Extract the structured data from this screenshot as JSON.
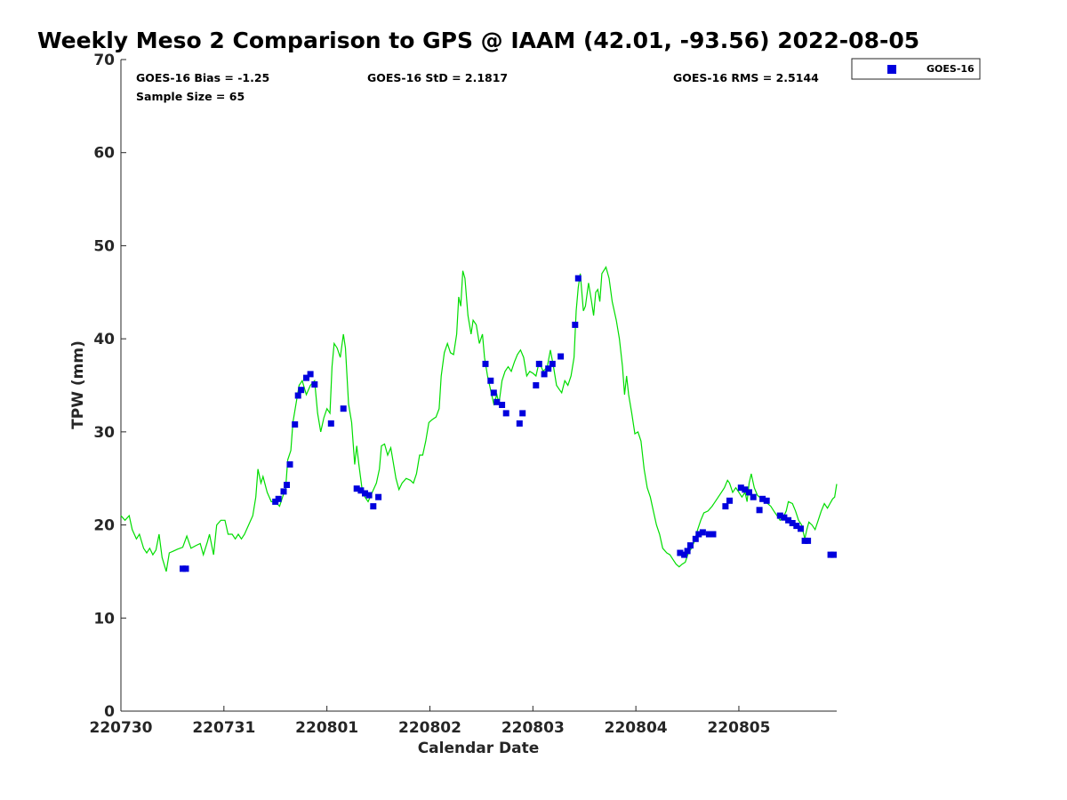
{
  "chart_data": {
    "type": "scatter",
    "title": "Weekly Meso 2 Comparison to GPS @ IAAM (42.01, -93.56) 2022-08-05",
    "xlabel": "Calendar Date",
    "ylabel": "TPW (mm)",
    "xlim": [
      0,
      6.95
    ],
    "ylim": [
      0,
      70
    ],
    "x_ticks": [
      0,
      1,
      2,
      3,
      4,
      5,
      6
    ],
    "x_tick_labels": [
      "220730",
      "220731",
      "220801",
      "220802",
      "220803",
      "220804",
      "220805"
    ],
    "y_ticks": [
      0,
      10,
      20,
      30,
      40,
      50,
      60,
      70
    ],
    "y_tick_labels": [
      "0",
      "10",
      "20",
      "30",
      "40",
      "50",
      "60",
      "70"
    ],
    "grid": false,
    "legend_position": "top-right",
    "stats": {
      "bias": "GOES-16 Bias = -1.25",
      "std": "GOES-16 StD = 2.1817",
      "rms": "GOES-16 RMS = 2.5144",
      "sample": "Sample Size = 65"
    },
    "series": [
      {
        "name": "GOES-16",
        "kind": "scatter",
        "marker": "square",
        "color": "#0000dd",
        "points": [
          [
            0.6,
            15.3
          ],
          [
            0.63,
            15.3
          ],
          [
            1.5,
            22.5
          ],
          [
            1.53,
            22.8
          ],
          [
            1.58,
            23.6
          ],
          [
            1.61,
            24.3
          ],
          [
            1.64,
            26.5
          ],
          [
            1.69,
            30.8
          ],
          [
            1.72,
            33.9
          ],
          [
            1.75,
            34.5
          ],
          [
            1.8,
            35.8
          ],
          [
            1.84,
            36.2
          ],
          [
            1.88,
            35.1
          ],
          [
            2.04,
            30.9
          ],
          [
            2.16,
            32.5
          ],
          [
            2.29,
            23.9
          ],
          [
            2.33,
            23.7
          ],
          [
            2.37,
            23.4
          ],
          [
            2.41,
            23.2
          ],
          [
            2.45,
            22.0
          ],
          [
            2.5,
            23.0
          ],
          [
            3.54,
            37.3
          ],
          [
            3.59,
            35.5
          ],
          [
            3.62,
            34.2
          ],
          [
            3.65,
            33.2
          ],
          [
            3.7,
            32.9
          ],
          [
            3.74,
            32.0
          ],
          [
            3.87,
            30.9
          ],
          [
            3.9,
            32.0
          ],
          [
            4.03,
            35.0
          ],
          [
            4.06,
            37.3
          ],
          [
            4.11,
            36.2
          ],
          [
            4.15,
            36.8
          ],
          [
            4.19,
            37.3
          ],
          [
            4.27,
            38.1
          ],
          [
            4.41,
            41.5
          ],
          [
            4.44,
            46.5
          ],
          [
            5.43,
            17.0
          ],
          [
            5.47,
            16.8
          ],
          [
            5.5,
            17.2
          ],
          [
            5.53,
            17.8
          ],
          [
            5.58,
            18.5
          ],
          [
            5.61,
            19.0
          ],
          [
            5.65,
            19.2
          ],
          [
            5.71,
            19.0
          ],
          [
            5.75,
            19.0
          ],
          [
            5.87,
            22.0
          ],
          [
            5.91,
            22.6
          ],
          [
            6.02,
            24.0
          ],
          [
            6.06,
            23.8
          ],
          [
            6.1,
            23.5
          ],
          [
            6.14,
            23.0
          ],
          [
            6.2,
            21.6
          ],
          [
            6.23,
            22.8
          ],
          [
            6.27,
            22.6
          ],
          [
            6.4,
            21.0
          ],
          [
            6.44,
            20.8
          ],
          [
            6.48,
            20.5
          ],
          [
            6.52,
            20.2
          ],
          [
            6.56,
            19.9
          ],
          [
            6.6,
            19.6
          ],
          [
            6.64,
            18.3
          ],
          [
            6.67,
            18.3
          ],
          [
            6.89,
            16.8
          ],
          [
            6.92,
            16.8
          ]
        ]
      },
      {
        "kind": "line",
        "color": "#00dd00",
        "points": [
          [
            0.0,
            21.0
          ],
          [
            0.04,
            20.5
          ],
          [
            0.08,
            21.0
          ],
          [
            0.11,
            19.5
          ],
          [
            0.15,
            18.5
          ],
          [
            0.18,
            19.0
          ],
          [
            0.22,
            17.5
          ],
          [
            0.25,
            17.0
          ],
          [
            0.28,
            17.5
          ],
          [
            0.31,
            16.8
          ],
          [
            0.34,
            17.3
          ],
          [
            0.37,
            19.0
          ],
          [
            0.4,
            16.5
          ],
          [
            0.44,
            15.0
          ],
          [
            0.47,
            17.0
          ],
          [
            0.51,
            17.2
          ],
          [
            0.55,
            17.4
          ],
          [
            0.6,
            17.6
          ],
          [
            0.64,
            18.8
          ],
          [
            0.68,
            17.5
          ],
          [
            0.73,
            17.8
          ],
          [
            0.77,
            18.0
          ],
          [
            0.8,
            16.8
          ],
          [
            0.84,
            18.2
          ],
          [
            0.86,
            19.0
          ],
          [
            0.9,
            16.8
          ],
          [
            0.93,
            20.0
          ],
          [
            0.97,
            20.5
          ],
          [
            1.01,
            20.5
          ],
          [
            1.04,
            19.0
          ],
          [
            1.08,
            19.0
          ],
          [
            1.11,
            18.5
          ],
          [
            1.14,
            19.0
          ],
          [
            1.17,
            18.5
          ],
          [
            1.2,
            19.0
          ],
          [
            1.24,
            20.0
          ],
          [
            1.28,
            21.0
          ],
          [
            1.31,
            23.0
          ],
          [
            1.33,
            26.0
          ],
          [
            1.36,
            24.5
          ],
          [
            1.38,
            25.2
          ],
          [
            1.42,
            23.5
          ],
          [
            1.46,
            22.5
          ],
          [
            1.5,
            22.5
          ],
          [
            1.54,
            22.0
          ],
          [
            1.57,
            23.0
          ],
          [
            1.6,
            24.0
          ],
          [
            1.62,
            27.0
          ],
          [
            1.65,
            28.0
          ],
          [
            1.67,
            31.0
          ],
          [
            1.7,
            33.0
          ],
          [
            1.73,
            35.0
          ],
          [
            1.76,
            35.5
          ],
          [
            1.8,
            34.0
          ],
          [
            1.84,
            35.0
          ],
          [
            1.88,
            35.5
          ],
          [
            1.91,
            32.0
          ],
          [
            1.94,
            30.0
          ],
          [
            1.97,
            31.5
          ],
          [
            2.0,
            32.5
          ],
          [
            2.03,
            32.0
          ],
          [
            2.05,
            37.0
          ],
          [
            2.07,
            39.5
          ],
          [
            2.1,
            39.0
          ],
          [
            2.13,
            38.0
          ],
          [
            2.16,
            40.5
          ],
          [
            2.18,
            39.0
          ],
          [
            2.21,
            33.0
          ],
          [
            2.24,
            31.0
          ],
          [
            2.27,
            26.5
          ],
          [
            2.29,
            28.5
          ],
          [
            2.31,
            26.5
          ],
          [
            2.34,
            24.0
          ],
          [
            2.37,
            23.0
          ],
          [
            2.4,
            22.5
          ],
          [
            2.44,
            23.5
          ],
          [
            2.48,
            24.5
          ],
          [
            2.51,
            26.0
          ],
          [
            2.53,
            28.5
          ],
          [
            2.56,
            28.7
          ],
          [
            2.59,
            27.5
          ],
          [
            2.62,
            28.3
          ],
          [
            2.64,
            27.0
          ],
          [
            2.67,
            25.0
          ],
          [
            2.7,
            23.8
          ],
          [
            2.73,
            24.5
          ],
          [
            2.77,
            25.0
          ],
          [
            2.81,
            24.8
          ],
          [
            2.84,
            24.5
          ],
          [
            2.87,
            25.5
          ],
          [
            2.9,
            27.5
          ],
          [
            2.93,
            27.5
          ],
          [
            2.96,
            29.0
          ],
          [
            2.99,
            31.0
          ],
          [
            3.02,
            31.3
          ],
          [
            3.06,
            31.6
          ],
          [
            3.09,
            32.5
          ],
          [
            3.11,
            36.0
          ],
          [
            3.14,
            38.5
          ],
          [
            3.17,
            39.5
          ],
          [
            3.2,
            38.5
          ],
          [
            3.23,
            38.3
          ],
          [
            3.26,
            40.5
          ],
          [
            3.28,
            44.5
          ],
          [
            3.3,
            43.5
          ],
          [
            3.32,
            47.3
          ],
          [
            3.34,
            46.5
          ],
          [
            3.37,
            42.5
          ],
          [
            3.4,
            40.5
          ],
          [
            3.42,
            42.0
          ],
          [
            3.45,
            41.5
          ],
          [
            3.48,
            39.5
          ],
          [
            3.51,
            40.5
          ],
          [
            3.53,
            38.0
          ],
          [
            3.56,
            36.0
          ],
          [
            3.59,
            34.5
          ],
          [
            3.62,
            33.0
          ],
          [
            3.65,
            34.0
          ],
          [
            3.67,
            33.0
          ],
          [
            3.7,
            35.5
          ],
          [
            3.73,
            36.5
          ],
          [
            3.76,
            37.0
          ],
          [
            3.79,
            36.5
          ],
          [
            3.82,
            37.5
          ],
          [
            3.85,
            38.3
          ],
          [
            3.88,
            38.8
          ],
          [
            3.91,
            38.0
          ],
          [
            3.94,
            36.0
          ],
          [
            3.97,
            36.5
          ],
          [
            4.0,
            36.3
          ],
          [
            4.03,
            36.0
          ],
          [
            4.06,
            37.5
          ],
          [
            4.1,
            36.5
          ],
          [
            4.14,
            37.0
          ],
          [
            4.17,
            38.8
          ],
          [
            4.2,
            37.0
          ],
          [
            4.23,
            35.0
          ],
          [
            4.26,
            34.5
          ],
          [
            4.28,
            34.2
          ],
          [
            4.31,
            35.5
          ],
          [
            4.34,
            35.0
          ],
          [
            4.37,
            36.0
          ],
          [
            4.4,
            38.0
          ],
          [
            4.42,
            43.0
          ],
          [
            4.44,
            45.5
          ],
          [
            4.46,
            47.0
          ],
          [
            4.49,
            43.0
          ],
          [
            4.51,
            43.5
          ],
          [
            4.54,
            46.0
          ],
          [
            4.57,
            44.0
          ],
          [
            4.59,
            42.5
          ],
          [
            4.61,
            45.0
          ],
          [
            4.63,
            45.3
          ],
          [
            4.65,
            44.0
          ],
          [
            4.67,
            47.0
          ],
          [
            4.71,
            47.7
          ],
          [
            4.74,
            46.5
          ],
          [
            4.77,
            44.0
          ],
          [
            4.81,
            42.0
          ],
          [
            4.84,
            40.0
          ],
          [
            4.87,
            37.0
          ],
          [
            4.89,
            34.0
          ],
          [
            4.91,
            36.0
          ],
          [
            4.93,
            34.0
          ],
          [
            4.96,
            32.0
          ],
          [
            4.99,
            29.8
          ],
          [
            5.02,
            30.0
          ],
          [
            5.05,
            29.0
          ],
          [
            5.08,
            26.0
          ],
          [
            5.11,
            24.0
          ],
          [
            5.14,
            23.0
          ],
          [
            5.17,
            21.5
          ],
          [
            5.2,
            20.0
          ],
          [
            5.23,
            19.0
          ],
          [
            5.26,
            17.5
          ],
          [
            5.3,
            17.0
          ],
          [
            5.33,
            16.8
          ],
          [
            5.36,
            16.3
          ],
          [
            5.39,
            15.8
          ],
          [
            5.42,
            15.5
          ],
          [
            5.45,
            15.8
          ],
          [
            5.48,
            16.0
          ],
          [
            5.51,
            17.0
          ],
          [
            5.54,
            17.5
          ],
          [
            5.57,
            18.3
          ],
          [
            5.6,
            19.5
          ],
          [
            5.63,
            20.5
          ],
          [
            5.66,
            21.3
          ],
          [
            5.7,
            21.5
          ],
          [
            5.74,
            22.0
          ],
          [
            5.77,
            22.5
          ],
          [
            5.8,
            23.0
          ],
          [
            5.83,
            23.5
          ],
          [
            5.86,
            24.0
          ],
          [
            5.89,
            24.8
          ],
          [
            5.91,
            24.5
          ],
          [
            5.94,
            23.5
          ],
          [
            5.97,
            24.0
          ],
          [
            6.0,
            23.5
          ],
          [
            6.03,
            23.0
          ],
          [
            6.06,
            23.5
          ],
          [
            6.08,
            22.5
          ],
          [
            6.1,
            24.5
          ],
          [
            6.12,
            25.5
          ],
          [
            6.15,
            24.0
          ],
          [
            6.18,
            23.2
          ],
          [
            6.22,
            22.8
          ],
          [
            6.25,
            22.5
          ],
          [
            6.28,
            22.3
          ],
          [
            6.31,
            22.0
          ],
          [
            6.34,
            21.5
          ],
          [
            6.37,
            21.0
          ],
          [
            6.4,
            20.5
          ],
          [
            6.43,
            20.8
          ],
          [
            6.46,
            21.5
          ],
          [
            6.48,
            22.5
          ],
          [
            6.52,
            22.3
          ],
          [
            6.55,
            21.5
          ],
          [
            6.58,
            20.5
          ],
          [
            6.61,
            20.0
          ],
          [
            6.64,
            18.5
          ],
          [
            6.66,
            19.5
          ],
          [
            6.68,
            20.3
          ],
          [
            6.71,
            20.0
          ],
          [
            6.74,
            19.5
          ],
          [
            6.77,
            20.5
          ],
          [
            6.8,
            21.5
          ],
          [
            6.83,
            22.3
          ],
          [
            6.86,
            21.8
          ],
          [
            6.88,
            22.2
          ],
          [
            6.91,
            22.8
          ],
          [
            6.93,
            23.0
          ],
          [
            6.95,
            24.4
          ]
        ]
      }
    ]
  }
}
